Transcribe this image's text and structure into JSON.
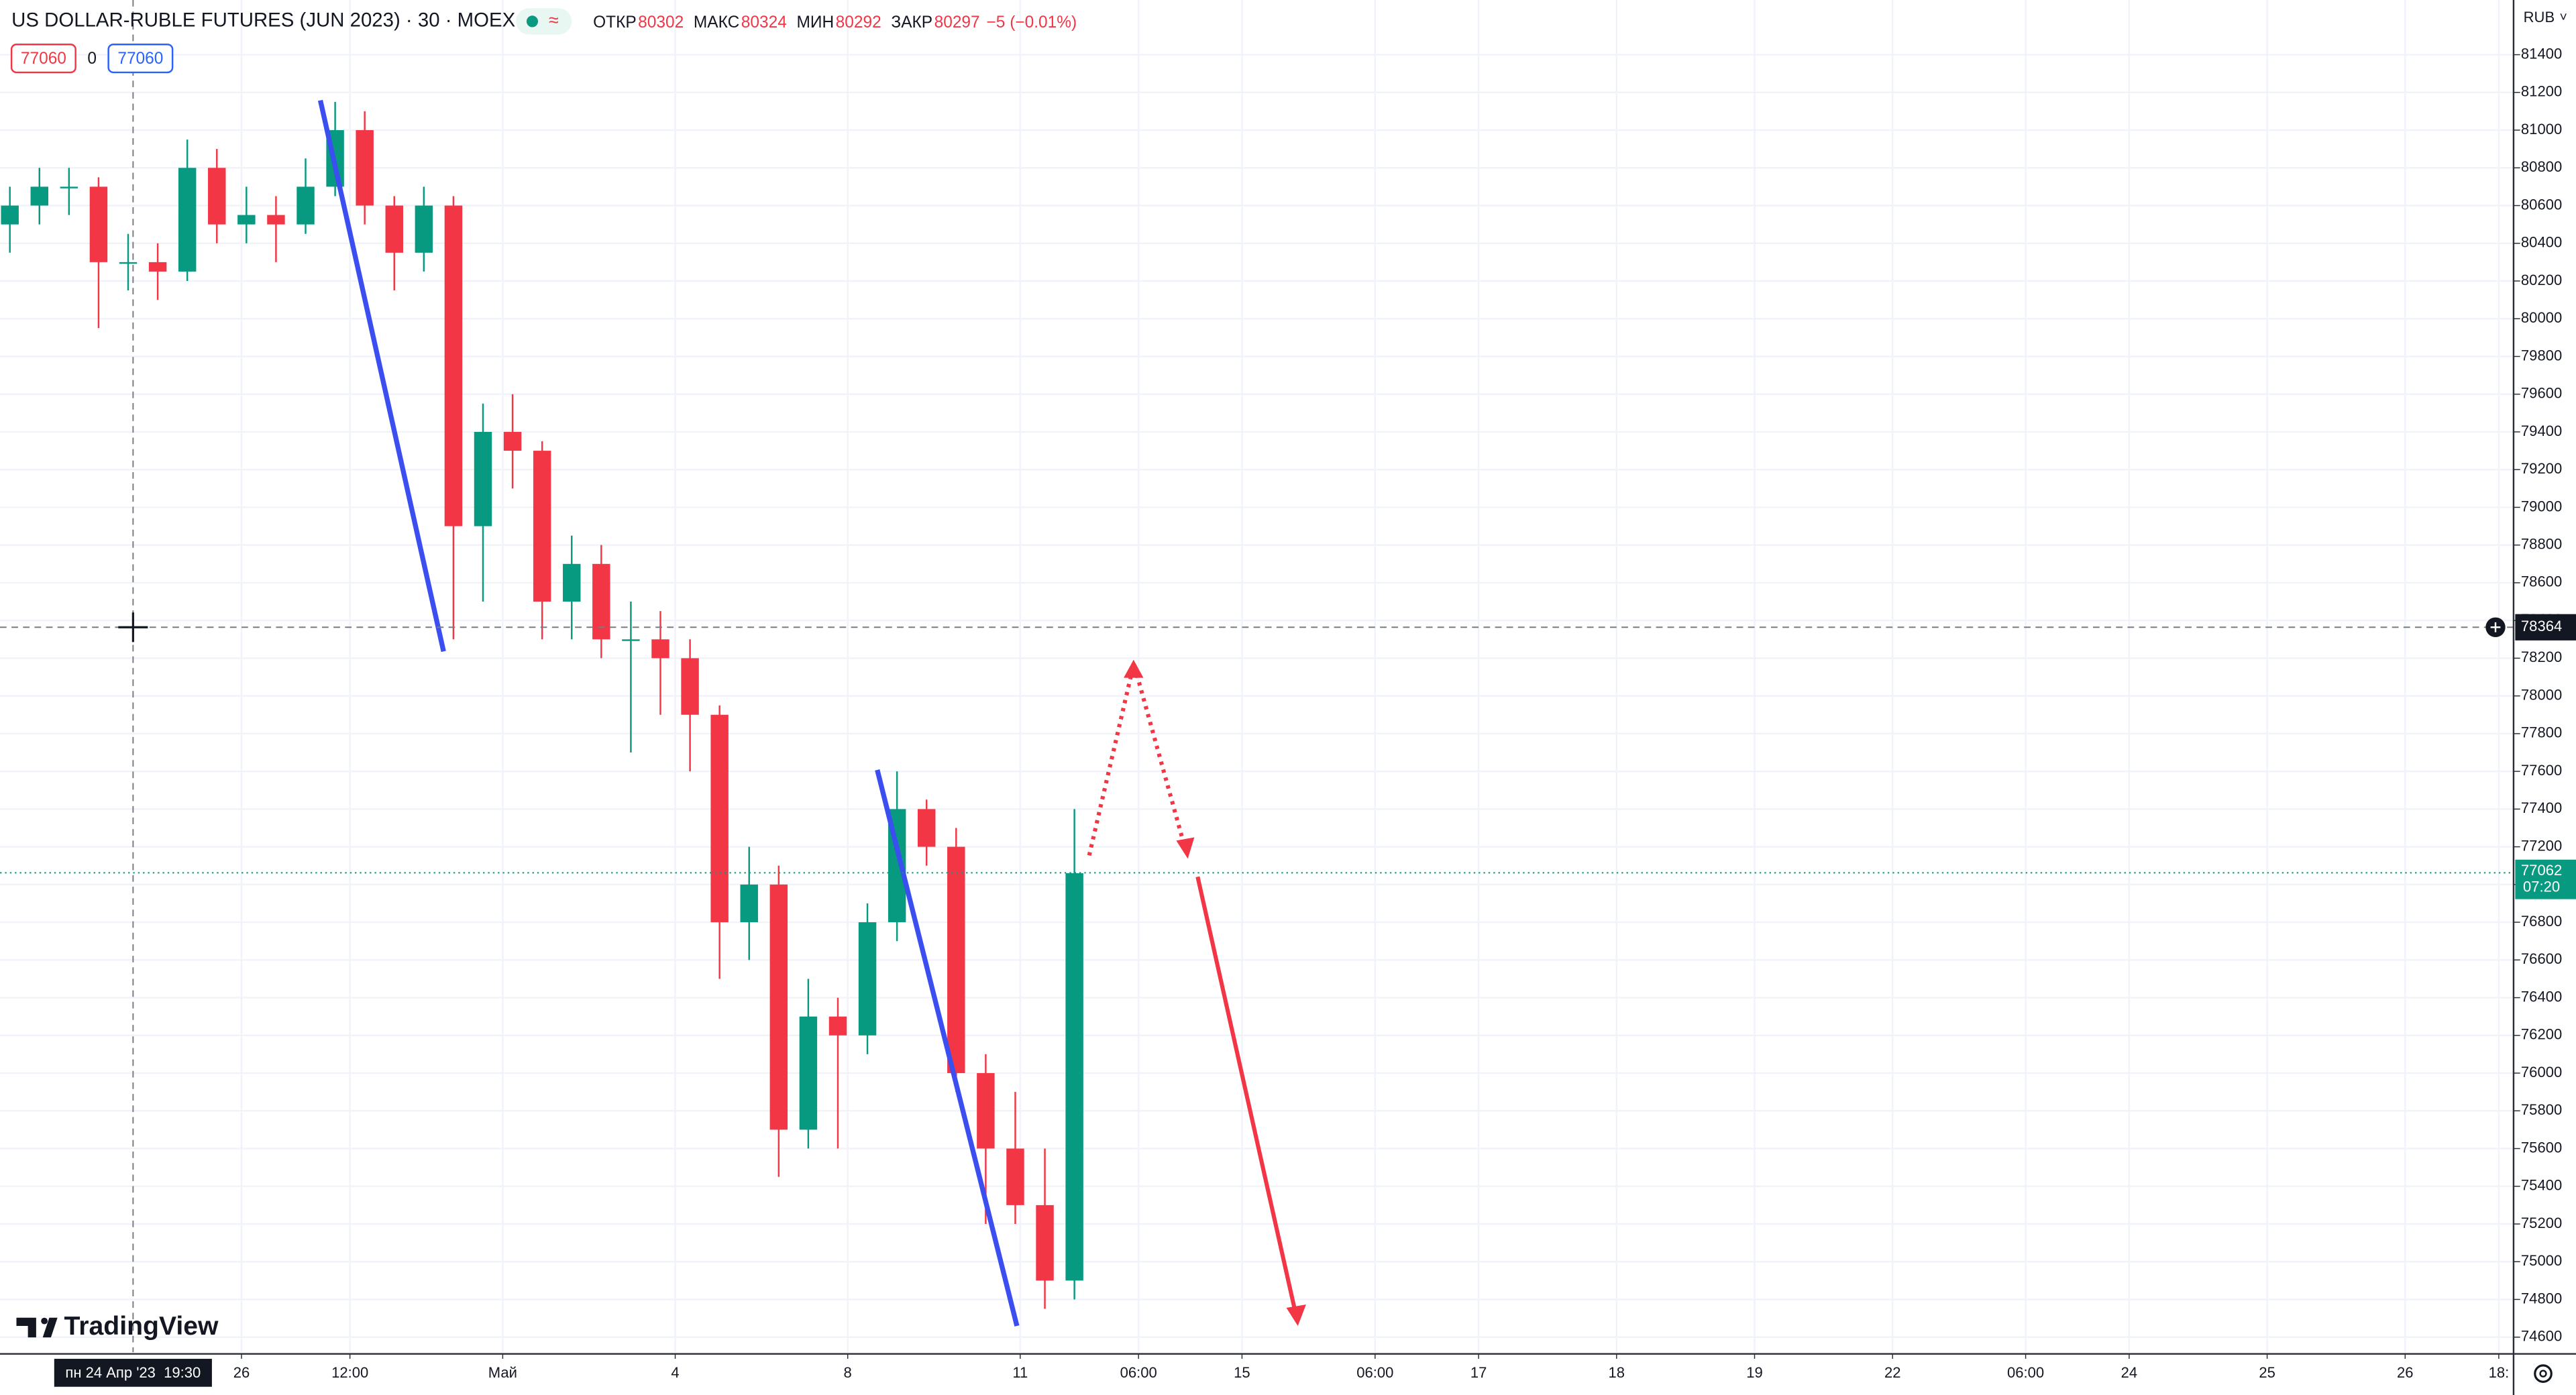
{
  "chart_data": {
    "type": "candlestick",
    "title": "US DOLLAR-RUBLE FUTURES (JUN 2023) · 30 · MOEX",
    "ohlc_header": [
      {
        "label": "ОТКР",
        "value": 80302
      },
      {
        "label": "МАКС",
        "value": 80324
      },
      {
        "label": "МИН",
        "value": 80292
      },
      {
        "label": "ЗАКР",
        "value": 80297
      }
    ],
    "change": "−5 (−0.01%)",
    "badges": [
      "77060",
      "0",
      "77060"
    ],
    "currency": "RUB",
    "brand": "TradingView",
    "up_color": "#089981",
    "down_color": "#f23645",
    "grid": true,
    "x": [
      2,
      8,
      14,
      20,
      26,
      32,
      38,
      44,
      50,
      56,
      62,
      68,
      74,
      80,
      86,
      92,
      98,
      104,
      110,
      116,
      122,
      128,
      134,
      140,
      146,
      152,
      158,
      164,
      170,
      176,
      182,
      188,
      194,
      200,
      206,
      212,
      218
    ],
    "open": [
      80500,
      80600,
      80700,
      80700,
      80300,
      80300,
      80250,
      80800,
      80500,
      80550,
      80500,
      80700,
      81000,
      80600,
      80350,
      80600,
      78900,
      79400,
      79300,
      78500,
      78700,
      78300,
      78300,
      78200,
      77900,
      76800,
      77000,
      75700,
      76300,
      76200,
      76800,
      77400,
      77200,
      76000,
      75600,
      75300,
      74900
    ],
    "high": [
      80700,
      80800,
      80800,
      80750,
      80450,
      80400,
      80950,
      80900,
      80700,
      80650,
      80850,
      81150,
      81100,
      80650,
      80700,
      80650,
      79550,
      79600,
      79350,
      78850,
      78800,
      78500,
      78450,
      78300,
      77950,
      77200,
      77100,
      76500,
      76400,
      76900,
      77600,
      77450,
      77300,
      76100,
      75900,
      75600,
      77400
    ],
    "low": [
      80350,
      80500,
      80550,
      79950,
      80150,
      80100,
      80200,
      80400,
      80400,
      80300,
      80450,
      80650,
      80500,
      80150,
      80250,
      78300,
      78500,
      79100,
      78300,
      78300,
      78200,
      77700,
      77900,
      77600,
      76500,
      76600,
      75450,
      75600,
      75600,
      76100,
      76700,
      77100,
      75900,
      75200,
      75200,
      74750,
      74800
    ],
    "close": [
      80600,
      80700,
      80700,
      80300,
      80300,
      80250,
      80800,
      80500,
      80550,
      80500,
      80700,
      81000,
      80600,
      80350,
      80600,
      78900,
      79400,
      79300,
      78500,
      78700,
      78300,
      78300,
      78200,
      77900,
      76800,
      77000,
      75700,
      76300,
      76200,
      76800,
      77400,
      77200,
      76000,
      75600,
      75300,
      74900,
      77060
    ],
    "xlim": [
      0,
      510
    ],
    "xticks": [
      {
        "value": 49,
        "label": "26"
      },
      {
        "value": 71,
        "label": "12:00"
      },
      {
        "value": 102,
        "label": "Май"
      },
      {
        "value": 137,
        "label": "4"
      },
      {
        "value": 172,
        "label": "8"
      },
      {
        "value": 207,
        "label": "11"
      },
      {
        "value": 231,
        "label": "06:00"
      },
      {
        "value": 252,
        "label": "15"
      },
      {
        "value": 279,
        "label": "06:00"
      },
      {
        "value": 300,
        "label": "17"
      },
      {
        "value": 328,
        "label": "18"
      },
      {
        "value": 356,
        "label": "19"
      },
      {
        "value": 384,
        "label": "22"
      },
      {
        "value": 411,
        "label": "06:00"
      },
      {
        "value": 432,
        "label": "24"
      },
      {
        "value": 460,
        "label": "25"
      },
      {
        "value": 488,
        "label": "26"
      },
      {
        "value": 507,
        "label": "18:"
      }
    ],
    "ylim": [
      74520,
      81690
    ],
    "yticks": [
      74600,
      74800,
      75000,
      75200,
      75400,
      75600,
      75800,
      76000,
      76200,
      76400,
      76600,
      76800,
      77000,
      77200,
      77400,
      77600,
      77800,
      78000,
      78200,
      78400,
      78600,
      78800,
      79000,
      79200,
      79400,
      79600,
      79800,
      80000,
      80200,
      80400,
      80600,
      80800,
      81000,
      81200,
      81400
    ],
    "crosshair": {
      "price": 78364,
      "x": 27,
      "time_label": "пн 24 Апр '23  19:30"
    },
    "last_price": {
      "value": 77062,
      "countdown": "07:20"
    }
  }
}
